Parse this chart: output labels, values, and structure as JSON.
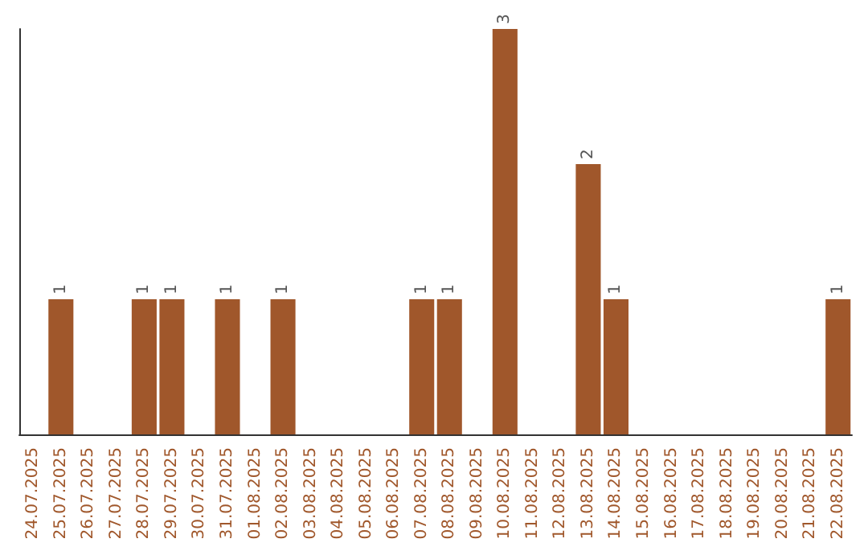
{
  "chart_data": {
    "type": "bar",
    "categories": [
      "24.07.2025",
      "25.07.2025",
      "26.07.2025",
      "27.07.2025",
      "28.07.2025",
      "29.07.2025",
      "30.07.2025",
      "31.07.2025",
      "01.08.2025",
      "02.08.2025",
      "03.08.2025",
      "04.08.2025",
      "05.08.2025",
      "06.08.2025",
      "07.08.2025",
      "08.08.2025",
      "09.08.2025",
      "10.08.2025",
      "11.08.2025",
      "12.08.2025",
      "13.08.2025",
      "14.08.2025",
      "15.08.2025",
      "16.08.2025",
      "17.08.2025",
      "18.08.2025",
      "19.08.2025",
      "20.08.2025",
      "21.08.2025",
      "22.08.2025"
    ],
    "values": [
      0,
      1,
      0,
      0,
      1,
      1,
      0,
      1,
      0,
      1,
      0,
      0,
      0,
      0,
      1,
      1,
      0,
      3,
      0,
      0,
      2,
      1,
      0,
      0,
      0,
      0,
      0,
      0,
      0,
      1
    ],
    "value_labels": [
      null,
      "1",
      null,
      null,
      "1",
      "1",
      null,
      "1",
      null,
      "1",
      null,
      null,
      null,
      null,
      "1",
      "1",
      null,
      "3",
      null,
      null,
      "2",
      "1",
      null,
      null,
      null,
      null,
      null,
      null,
      null,
      "1"
    ],
    "color": "#a0572b",
    "tick_labels": "x",
    "grid": false
  }
}
